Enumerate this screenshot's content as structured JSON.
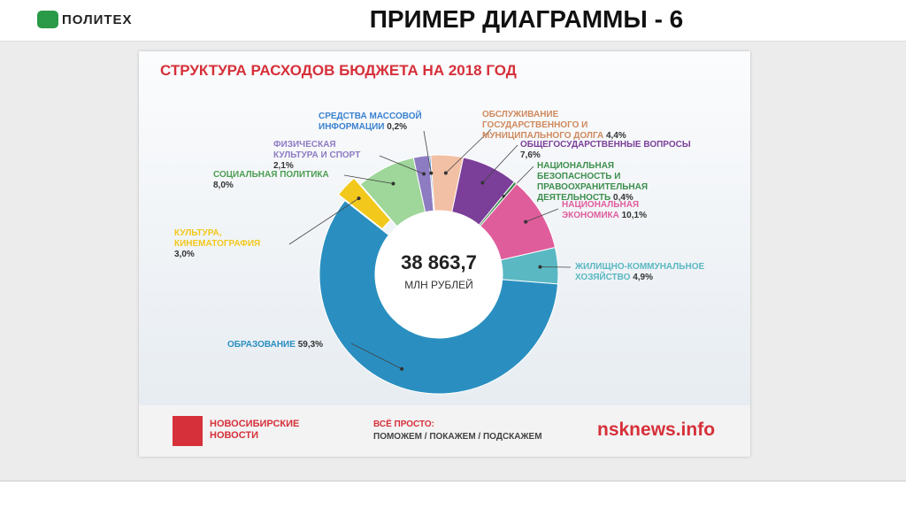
{
  "header": {
    "logo": "ПОЛИТЕХ",
    "title": "ПРИМЕР ДИАГРАММЫ - 6"
  },
  "chart_data": {
    "type": "donut",
    "title": "СТРУКТУРА РАСХОДОВ БЮДЖЕТА НА 2018 ГОД",
    "center_label": "38 863,7",
    "center_sublabel": "МЛН РУБЛЕЙ",
    "categories": [
      "ОБСЛУЖИВАНИЕ ГОСУДАРСТВЕННОГО И МУНИЦИПАЛЬНОГО ДОЛГА",
      "ОБЩЕГОСУДАРСТВЕННЫЕ ВОПРОСЫ",
      "НАЦИОНАЛЬНАЯ БЕЗОПАСНОСТЬ И ПРАВООХРАНИТЕЛЬНАЯ ДЕЯТЕЛЬНОСТЬ",
      "НАЦИОНАЛЬНАЯ ЭКОНОМИКА",
      "ЖИЛИЩНО-КОММУНАЛЬНОЕ ХОЗЯЙСТВО",
      "ОБРАЗОВАНИЕ",
      "КУЛЬТУРА, КИНЕМАТОГРАФИЯ",
      "СОЦИАЛЬНАЯ ПОЛИТИКА",
      "ФИЗИЧЕСКАЯ КУЛЬТУРА И СПОРТ",
      "СРЕДСТВА МАССОВОЙ ИНФОРМАЦИИ"
    ],
    "values": [
      4.4,
      7.6,
      0.4,
      10.1,
      4.9,
      59.3,
      3.0,
      8.0,
      2.1,
      0.2
    ],
    "value_labels": [
      "4,4%",
      "7,6%",
      "0,4%",
      "10,1%",
      "4,9%",
      "59,3%",
      "3,0%",
      "8,0%",
      "2,1%",
      "0,2%"
    ],
    "colors": [
      "#f2c0a4",
      "#7b3f9a",
      "#3e8f4e",
      "#e05d9c",
      "#5ab8c2",
      "#2a8fc0",
      "#f2c81c",
      "#9fd69a",
      "#8e7cc3",
      "#3b82d0"
    ]
  },
  "footer": {
    "brand": "НОВОСИБИРСКИЕ НОВОСТИ",
    "slogan_title": "ВСЁ ПРОСТО:",
    "slogan": "ПОМОЖЕМ / ПОКАЖЕМ / ПОДСКАЖЕМ",
    "site": "nsknews.info"
  }
}
